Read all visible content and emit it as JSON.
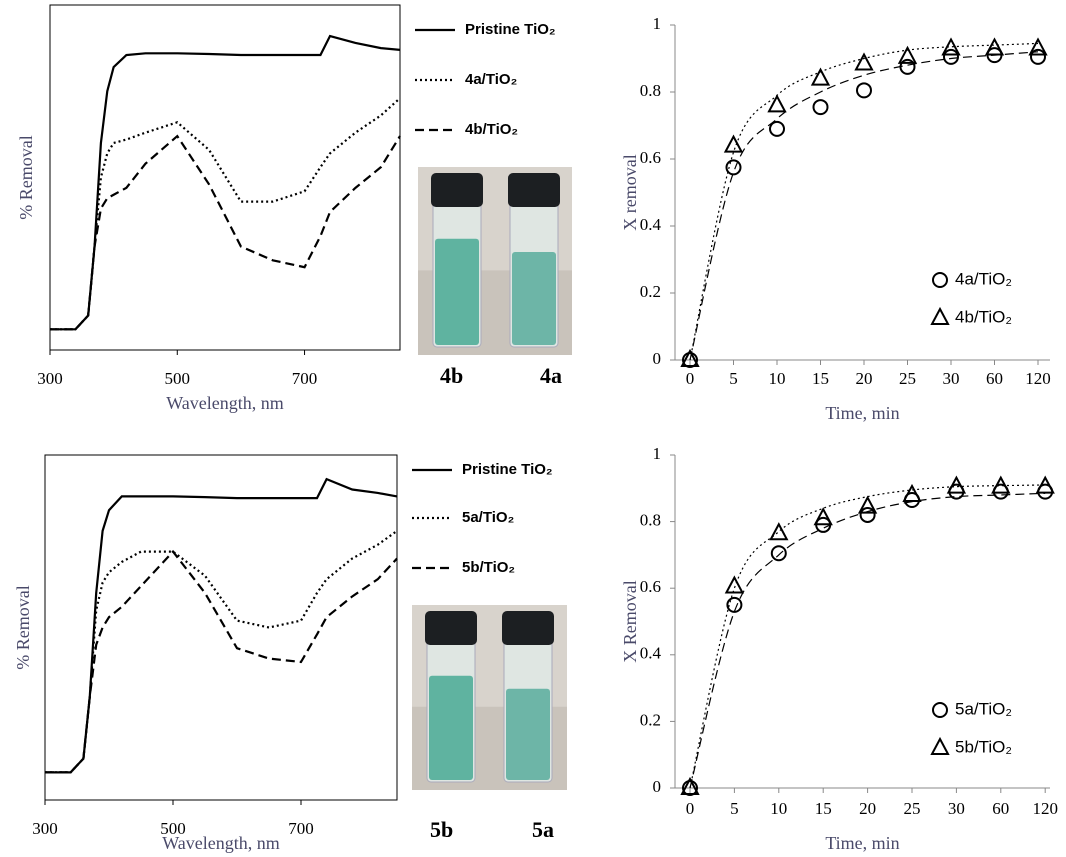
{
  "chart_data": [
    {
      "type": "line",
      "xlabel": "Wavelength, nm",
      "ylabel": "% Removal",
      "xlim": [
        300,
        850
      ],
      "ylim": [
        0,
        1
      ],
      "xticks": [
        300,
        500,
        700
      ],
      "x": [
        300,
        340,
        360,
        370,
        380,
        390,
        400,
        420,
        450,
        500,
        550,
        600,
        650,
        700,
        725,
        740,
        780,
        820,
        850
      ],
      "series": [
        {
          "name": "Pristine TiO₂",
          "color": "#000000",
          "dash": "solid",
          "values": [
            0.06,
            0.06,
            0.1,
            0.3,
            0.6,
            0.75,
            0.82,
            0.855,
            0.86,
            0.86,
            0.858,
            0.855,
            0.855,
            0.855,
            0.855,
            0.91,
            0.89,
            0.875,
            0.87
          ]
        },
        {
          "name": "4a/TiO₂",
          "color": "#000000",
          "dash": "dotted",
          "values": [
            0.06,
            0.06,
            0.1,
            0.3,
            0.5,
            0.57,
            0.6,
            0.61,
            0.63,
            0.66,
            0.58,
            0.43,
            0.43,
            0.46,
            0.53,
            0.57,
            0.63,
            0.68,
            0.73
          ]
        },
        {
          "name": "4b/TiO₂",
          "color": "#000000",
          "dash": "dashed",
          "values": [
            0.06,
            0.06,
            0.1,
            0.3,
            0.41,
            0.44,
            0.45,
            0.47,
            0.54,
            0.62,
            0.48,
            0.3,
            0.26,
            0.24,
            0.33,
            0.4,
            0.47,
            0.53,
            0.62
          ]
        }
      ],
      "annotations": [
        "4b",
        "4a"
      ]
    },
    {
      "type": "scatter",
      "xlabel": "Time, min",
      "ylabel": "X removal",
      "categories": [
        "0",
        "5",
        "10",
        "15",
        "20",
        "25",
        "30",
        "60",
        "120"
      ],
      "ylim": [
        0,
        1
      ],
      "yticks": [
        0,
        0.2,
        0.4,
        0.6,
        0.8,
        1
      ],
      "series": [
        {
          "name": "4a/TiO₂",
          "color": "#000000",
          "marker": "circle",
          "dash": "dashed",
          "values": [
            0,
            0.575,
            0.69,
            0.755,
            0.805,
            0.875,
            0.905,
            0.91,
            0.905
          ],
          "fit": [
            0,
            0.56,
            0.72,
            0.8,
            0.85,
            0.88,
            0.9,
            0.91,
            0.92
          ]
        },
        {
          "name": "4b/TiO₂",
          "color": "#000000",
          "marker": "triangle",
          "dash": "dotted",
          "values": [
            0,
            0.64,
            0.76,
            0.84,
            0.885,
            0.905,
            0.93,
            0.93,
            0.93
          ],
          "fit": [
            0,
            0.62,
            0.79,
            0.86,
            0.9,
            0.925,
            0.935,
            0.94,
            0.945
          ]
        }
      ]
    },
    {
      "type": "line",
      "xlabel": "Wavelength, nm",
      "ylabel": "% Removal",
      "xlim": [
        300,
        850
      ],
      "ylim": [
        0,
        1
      ],
      "xticks": [
        300,
        500,
        700
      ],
      "x": [
        300,
        340,
        360,
        370,
        380,
        390,
        400,
        420,
        450,
        500,
        550,
        600,
        650,
        700,
        725,
        740,
        780,
        820,
        850
      ],
      "series": [
        {
          "name": "Pristine TiO₂",
          "color": "#000000",
          "dash": "solid",
          "values": [
            0.08,
            0.08,
            0.12,
            0.3,
            0.6,
            0.78,
            0.84,
            0.88,
            0.88,
            0.88,
            0.878,
            0.875,
            0.875,
            0.875,
            0.875,
            0.93,
            0.9,
            0.89,
            0.88
          ]
        },
        {
          "name": "5a/TiO₂",
          "color": "#000000",
          "dash": "dotted",
          "values": [
            0.08,
            0.08,
            0.12,
            0.3,
            0.55,
            0.63,
            0.66,
            0.69,
            0.72,
            0.72,
            0.65,
            0.52,
            0.5,
            0.52,
            0.6,
            0.64,
            0.7,
            0.74,
            0.78
          ]
        },
        {
          "name": "5b/TiO₂",
          "color": "#000000",
          "dash": "dashed",
          "values": [
            0.08,
            0.08,
            0.12,
            0.3,
            0.45,
            0.5,
            0.53,
            0.56,
            0.62,
            0.72,
            0.6,
            0.44,
            0.41,
            0.4,
            0.48,
            0.53,
            0.59,
            0.64,
            0.7
          ]
        }
      ],
      "annotations": [
        "5b",
        "5a"
      ]
    },
    {
      "type": "scatter",
      "xlabel": "Time, min",
      "ylabel": "X Removal",
      "categories": [
        "0",
        "5",
        "10",
        "15",
        "20",
        "25",
        "30",
        "60",
        "120"
      ],
      "ylim": [
        0,
        1
      ],
      "yticks": [
        0,
        0.2,
        0.4,
        0.6,
        0.8,
        1
      ],
      "series": [
        {
          "name": "5a/TiO₂",
          "color": "#000000",
          "marker": "circle",
          "dash": "dashed",
          "values": [
            0,
            0.55,
            0.705,
            0.79,
            0.82,
            0.865,
            0.89,
            0.89,
            0.89
          ],
          "fit": [
            0,
            0.53,
            0.7,
            0.78,
            0.83,
            0.86,
            0.875,
            0.88,
            0.885
          ]
        },
        {
          "name": "5b/TiO₂",
          "color": "#000000",
          "marker": "triangle",
          "dash": "dotted",
          "values": [
            0,
            0.605,
            0.765,
            0.81,
            0.845,
            0.88,
            0.905,
            0.905,
            0.905
          ],
          "fit": [
            0,
            0.6,
            0.77,
            0.84,
            0.875,
            0.895,
            0.905,
            0.908,
            0.91
          ]
        }
      ]
    }
  ]
}
